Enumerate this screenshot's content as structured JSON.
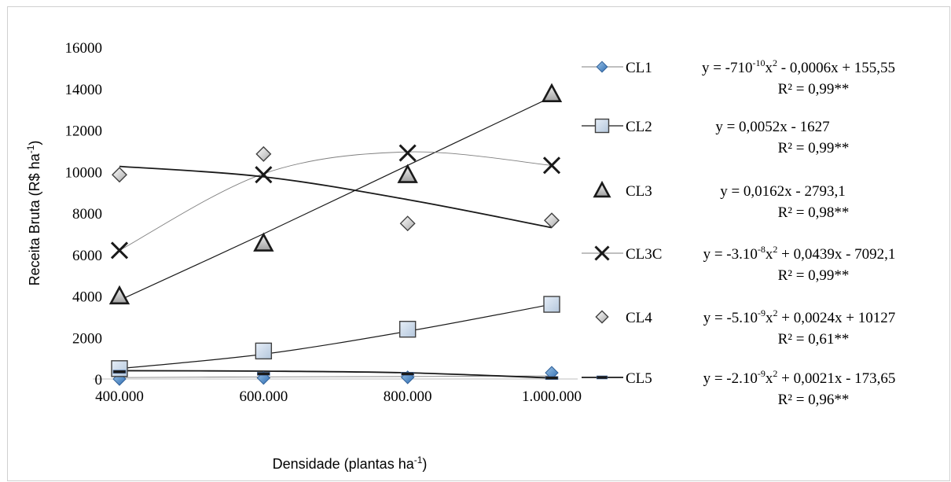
{
  "chart_data": {
    "type": "scatter",
    "x": [
      400000,
      600000,
      800000,
      1000000
    ],
    "x_tick_labels": [
      "400.000",
      "600.000",
      "800.000",
      "1.000.000"
    ],
    "y_ticks": [
      0,
      2000,
      4000,
      6000,
      8000,
      10000,
      12000,
      14000,
      16000
    ],
    "ylim": [
      0,
      16000
    ],
    "grid": false,
    "legend_position": "right",
    "xlabel": {
      "main": "Densidade (plantas ha",
      "sup": "-1",
      "end": ")"
    },
    "ylabel": {
      "main": "Receita Bruta (R$ ha",
      "sup": "-1",
      "end": ")"
    },
    "series": [
      {
        "name": "CL1",
        "marker": "diamond-blue",
        "trend": "thin",
        "values": [
          0,
          50,
          80,
          300
        ],
        "trend_values": [
          70,
          100,
          120,
          150
        ],
        "equation": {
          "pre": "y = -710",
          "sup1": "-10",
          "mid": "x",
          "sup2": "2",
          "post": " - 0,0006x + 155,55"
        },
        "r2": "R² = 0,99**"
      },
      {
        "name": "CL2",
        "marker": "square",
        "trend": "medium",
        "values": [
          500,
          1350,
          2400,
          3600
        ],
        "trend_values": [
          500,
          1200,
          2300,
          3600
        ],
        "equation": {
          "pre": "y = 0,0052x - 1627",
          "sup1": "",
          "mid": "",
          "sup2": "",
          "post": ""
        },
        "r2": "R² = 0,99**"
      },
      {
        "name": "CL3",
        "marker": "triangle",
        "trend": "medium",
        "values": [
          4000,
          6550,
          9850,
          13750
        ],
        "trend_values": [
          3800,
          7000,
          10300,
          13600
        ],
        "equation": {
          "pre": "y = 0,0162x - 2793,1",
          "sup1": "",
          "mid": "",
          "sup2": "",
          "post": ""
        },
        "r2": "R² = 0,98**"
      },
      {
        "name": "CL3C",
        "marker": "x",
        "trend": "thin",
        "values": [
          6200,
          9850,
          10900,
          10300
        ],
        "trend_values": [
          6200,
          9900,
          10950,
          10300
        ],
        "equation": {
          "pre": "y = -3.10",
          "sup1": "-8",
          "mid": "x",
          "sup2": "2",
          "post": " + 0,0439x - 7092,1"
        },
        "r2": "R² = 0,99**"
      },
      {
        "name": "CL4",
        "marker": "diamond-gray",
        "trend": "thick",
        "values": [
          9850,
          10850,
          7500,
          7650
        ],
        "trend_values": [
          10250,
          9750,
          8650,
          7300
        ],
        "equation": {
          "pre": "y = -5.10",
          "sup1": "-9",
          "mid": "x",
          "sup2": "2",
          "post": " + 0,0024x + 10127"
        },
        "r2": "R² = 0,61**"
      },
      {
        "name": "CL5",
        "marker": "dash",
        "trend": "thick",
        "values": [
          350,
          250,
          250,
          50
        ],
        "trend_values": [
          400,
          380,
          300,
          50
        ],
        "equation": {
          "pre": "y = -2.10",
          "sup1": "-9",
          "mid": "x",
          "sup2": "2",
          "post": " + 0,0021x - 173,65"
        },
        "r2": "R² = 0,96**"
      }
    ]
  }
}
